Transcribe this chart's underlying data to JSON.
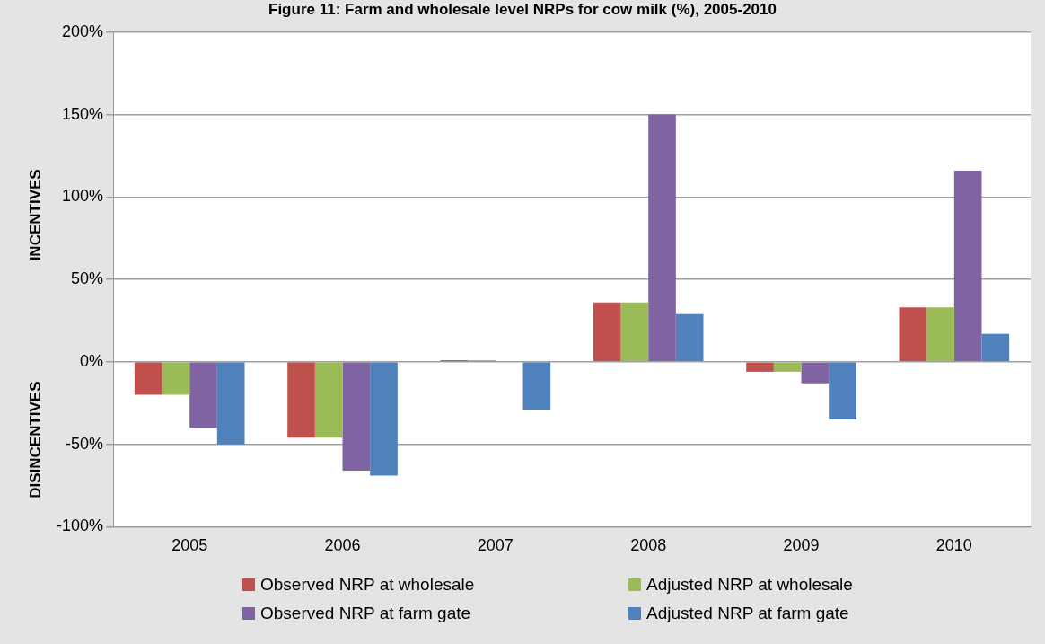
{
  "chart_data": {
    "type": "bar",
    "title": "Figure 11: Farm and wholesale level NRPs for cow milk (%), 2005-2010",
    "categories": [
      "2005",
      "2006",
      "2007",
      "2008",
      "2009",
      "2010"
    ],
    "series": [
      {
        "name": "Observed NRP at wholesale",
        "color": "#c0504d",
        "values": [
          -20,
          -46,
          1,
          36,
          -6,
          33
        ]
      },
      {
        "name": "Adjusted NRP at wholesale",
        "color": "#9bbb59",
        "values": [
          -20,
          -46,
          1,
          36,
          -6,
          33
        ]
      },
      {
        "name": "Observed NRP at farm gate",
        "color": "#8064a2",
        "values": [
          -40,
          -66,
          0,
          150,
          -13,
          116
        ]
      },
      {
        "name": "Adjusted NRP at farm gate",
        "color": "#4f81bd",
        "values": [
          -50,
          -69,
          -29,
          29,
          -35,
          17
        ]
      }
    ],
    "ylim": [
      -100,
      200
    ],
    "yticks": [
      {
        "value": -100,
        "label": "-100%"
      },
      {
        "value": -50,
        "label": "-50%"
      },
      {
        "value": 0,
        "label": "0%"
      },
      {
        "value": 50,
        "label": "50%"
      },
      {
        "value": 100,
        "label": "100%"
      },
      {
        "value": 150,
        "label": "150%"
      },
      {
        "value": 200,
        "label": "200%"
      }
    ],
    "annotations": [
      "INCENTIVES",
      "DISINCENTIVES"
    ],
    "grid": "y",
    "legend": "bottom"
  }
}
